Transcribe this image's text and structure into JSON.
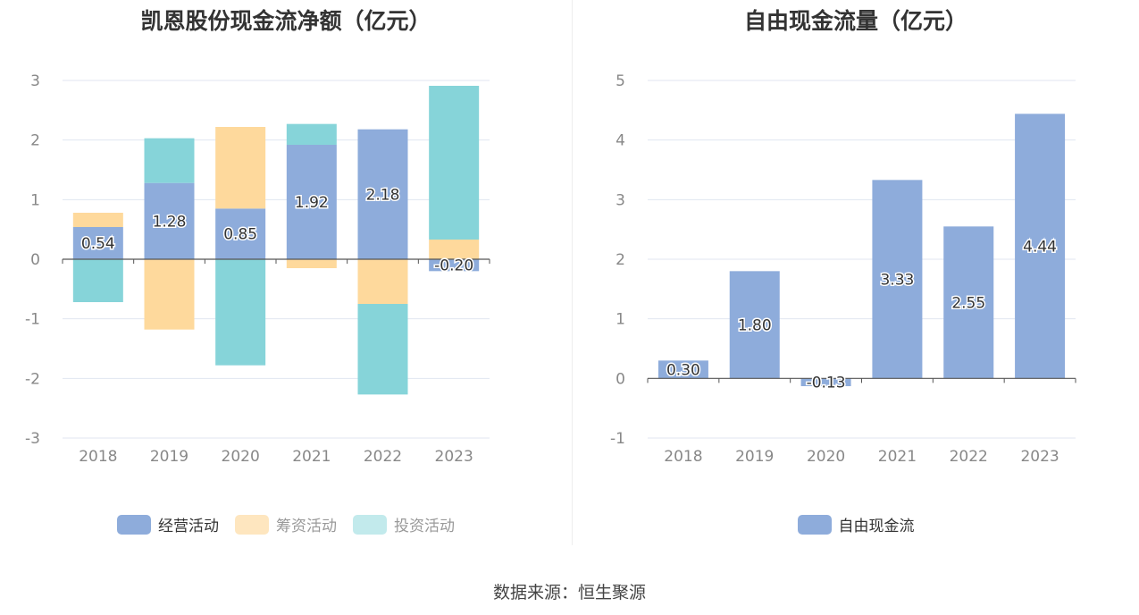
{
  "source": "数据来源：恒生聚源",
  "colors": {
    "operating": "#8eacdb",
    "financing": "#fed99c",
    "investing": "#86d4d9",
    "axis": "#555555",
    "grid": "#e0e6f1",
    "tick": "#888888"
  },
  "chart_data": [
    {
      "type": "bar",
      "stacked": true,
      "title": "凯恩股份现金流净额（亿元）",
      "categories": [
        "2018",
        "2019",
        "2020",
        "2021",
        "2022",
        "2023"
      ],
      "ylim": [
        -3,
        3
      ],
      "yticks": [
        "3",
        "2",
        "1",
        "0",
        "-1",
        "-2",
        "-3"
      ],
      "grid": true,
      "legend_position": "bottom",
      "series": [
        {
          "name": "经营活动",
          "color": "#8eacdb",
          "values": [
            0.54,
            1.28,
            0.85,
            1.92,
            2.18,
            -0.2
          ],
          "labels": [
            "0.54",
            "1.28",
            "0.85",
            "1.92",
            "2.18",
            "-0.20"
          ]
        },
        {
          "name": "筹资活动",
          "color": "#fed99c",
          "values": [
            0.24,
            -1.18,
            1.37,
            -0.15,
            -0.75,
            0.33
          ]
        },
        {
          "name": "投资活动",
          "color": "#86d4d9",
          "values": [
            -0.72,
            0.75,
            -1.78,
            0.35,
            -1.52,
            2.58
          ]
        }
      ]
    },
    {
      "type": "bar",
      "title": "自由现金流量（亿元）",
      "categories": [
        "2018",
        "2019",
        "2020",
        "2021",
        "2022",
        "2023"
      ],
      "ylim": [
        -1,
        5
      ],
      "yticks": [
        "5",
        "4",
        "3",
        "2",
        "1",
        "0",
        "-1"
      ],
      "grid": true,
      "legend_position": "bottom",
      "series": [
        {
          "name": "自由现金流",
          "color": "#8eacdb",
          "values": [
            0.3,
            1.8,
            -0.13,
            3.33,
            2.55,
            4.44
          ],
          "labels": [
            "0.30",
            "1.80",
            "-0.13",
            "3.33",
            "2.55",
            "4.44"
          ]
        }
      ]
    }
  ]
}
